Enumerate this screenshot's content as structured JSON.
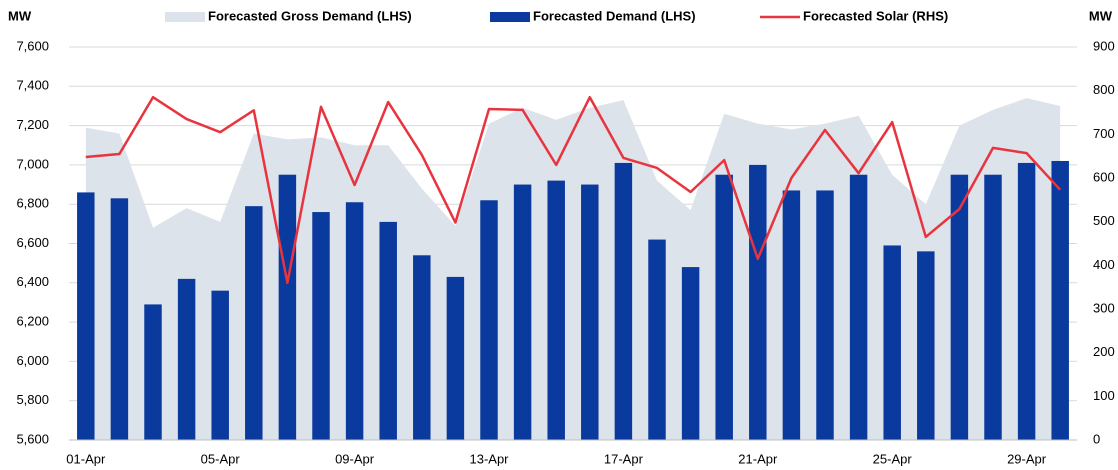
{
  "chart_data": {
    "type": "bar-area-line",
    "y_label": "MW",
    "y2_label": "MW",
    "categories": [
      "01-Apr",
      null,
      null,
      null,
      "05-Apr",
      null,
      null,
      null,
      "09-Apr",
      null,
      null,
      null,
      "13-Apr",
      null,
      null,
      null,
      "17-Apr",
      null,
      null,
      null,
      "21-Apr",
      null,
      null,
      null,
      "25-Apr",
      null,
      null,
      null,
      "29-Apr",
      null
    ],
    "series": [
      {
        "name": "Forecasted Gross Demand (LHS)",
        "kind": "area",
        "color": "#dde3ea",
        "values": [
          7190,
          7160,
          6680,
          6780,
          6710,
          7160,
          7130,
          7140,
          7100,
          7100,
          6880,
          6690,
          7210,
          7290,
          7230,
          7290,
          7330,
          6920,
          6770,
          7260,
          7210,
          7180,
          7210,
          7250,
          6950,
          6800,
          7200,
          7280,
          7340,
          7300
        ]
      },
      {
        "name": "Forecasted Demand (LHS)",
        "kind": "bar",
        "color": "#0a3a9e",
        "values": [
          6860,
          6830,
          6290,
          6420,
          6360,
          6790,
          6950,
          6760,
          6810,
          6710,
          6540,
          6430,
          6820,
          6900,
          6920,
          6900,
          7010,
          6620,
          6480,
          6950,
          7000,
          6870,
          6870,
          6950,
          6590,
          6560,
          6950,
          6950,
          7010,
          7020
        ]
      },
      {
        "name": "Forecasted Solar (RHS)",
        "kind": "line",
        "axis": "y2",
        "color": "#e8343f",
        "values": [
          648,
          655,
          785,
          735,
          705,
          755,
          360,
          763,
          584,
          774,
          653,
          498,
          758,
          756,
          630,
          785,
          646,
          623,
          568,
          641,
          415,
          600,
          710,
          611,
          728,
          465,
          529,
          669,
          657,
          573
        ]
      }
    ],
    "ylim": [
      5600,
      7600
    ],
    "yticks": [
      {
        "value": 5600,
        "label": "5,600"
      },
      {
        "value": 5800,
        "label": "5,800"
      },
      {
        "value": 6000,
        "label": "6,000"
      },
      {
        "value": 6200,
        "label": "6,200"
      },
      {
        "value": 6400,
        "label": "6,400"
      },
      {
        "value": 6600,
        "label": "6,600"
      },
      {
        "value": 6800,
        "label": "6,800"
      },
      {
        "value": 7000,
        "label": "7,000"
      },
      {
        "value": 7200,
        "label": "7,200"
      },
      {
        "value": 7400,
        "label": "7,400"
      },
      {
        "value": 7600,
        "label": "7,600"
      }
    ],
    "y2lim": [
      0,
      900
    ],
    "y2ticks": [
      0,
      100,
      200,
      300,
      400,
      500,
      600,
      700,
      800,
      900
    ],
    "grid": true,
    "legend": "top"
  }
}
